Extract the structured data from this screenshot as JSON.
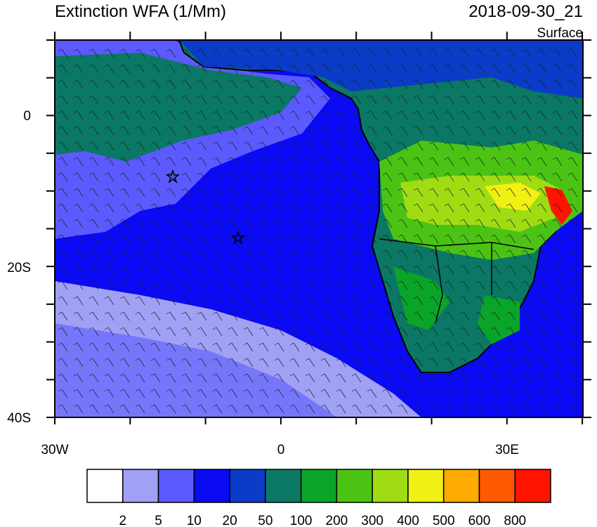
{
  "header": {
    "title": "Extinction WFA (1/Mm)",
    "date": "2018-09-30_21",
    "level": "Surface"
  },
  "map": {
    "lat_labels": [
      "0",
      "20S",
      "40S"
    ],
    "lon_labels": [
      "30W",
      "0",
      "30E"
    ]
  },
  "colorbar": {
    "colors": [
      "#ffffff",
      "#a0a0f5",
      "#5a5aff",
      "#0a0af5",
      "#0a3cc8",
      "#0a7864",
      "#0aa528",
      "#4bc314",
      "#a0dc14",
      "#f0f014",
      "#ffaa00",
      "#ff5a00",
      "#ff1400"
    ],
    "labels": [
      "2",
      "5",
      "10",
      "20",
      "50",
      "100",
      "200",
      "300",
      "400",
      "500",
      "600",
      "800"
    ]
  }
}
